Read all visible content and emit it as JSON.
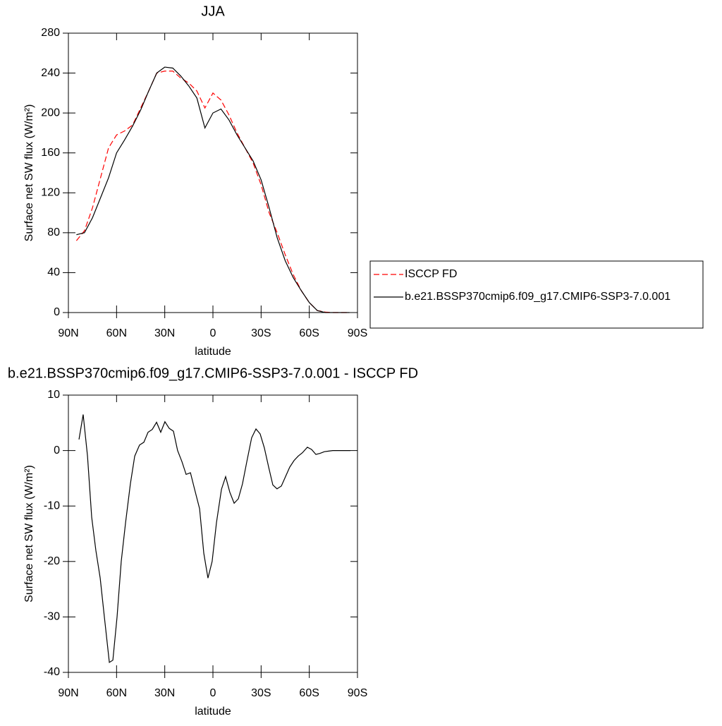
{
  "chart_data": [
    {
      "type": "line",
      "title": "JJA",
      "xlabel": "latitude",
      "ylabel": "Surface net SW flux (W/m²)",
      "x": [
        85,
        80,
        75,
        70,
        65,
        60,
        55,
        50,
        45,
        40,
        35,
        30,
        25,
        20,
        15,
        10,
        5,
        0,
        -5,
        -10,
        -15,
        -20,
        -25,
        -30,
        -35,
        -40,
        -45,
        -50,
        -55,
        -60,
        -65,
        -70,
        -75,
        -80,
        -85
      ],
      "series": [
        {
          "name": "ISCCP FD",
          "color": "#ff0000",
          "linestyle": "dashed",
          "values": [
            72,
            82,
            105,
            135,
            165,
            178,
            182,
            188,
            205,
            222,
            240,
            242,
            242,
            235,
            230,
            222,
            205,
            220,
            213,
            198,
            180,
            165,
            150,
            128,
            100,
            80,
            58,
            38,
            22,
            10,
            2,
            0.5,
            0,
            0,
            0
          ]
        },
        {
          "name": "b.e21.BSSP370cmip6.f09_g17.CMIP6-SSP3-7.0.001",
          "color": "#000000",
          "linestyle": "solid",
          "values": [
            78,
            80,
            95,
            115,
            135,
            160,
            173,
            187,
            203,
            222,
            240,
            246,
            245,
            237,
            227,
            215,
            185,
            200,
            204,
            193,
            178,
            165,
            152,
            133,
            105,
            75,
            52,
            35,
            22,
            10,
            2,
            0,
            0,
            0,
            0
          ]
        }
      ],
      "xlim": [
        90,
        -90
      ],
      "xticks": [
        {
          "value": 90,
          "label": "90N"
        },
        {
          "value": 60,
          "label": "60N"
        },
        {
          "value": 30,
          "label": "30N"
        },
        0,
        {
          "value": -30,
          "label": "30S"
        },
        {
          "value": -60,
          "label": "60S"
        },
        {
          "value": -90,
          "label": "90S"
        }
      ],
      "ylim": [
        0,
        280
      ],
      "yticks": [
        0,
        40,
        80,
        120,
        160,
        200,
        240,
        280
      ],
      "legend": "right"
    },
    {
      "type": "line",
      "title": "b.e21.BSSP370cmip6.f09_g17.CMIP6-SSP3-7.0.001 - ISCCP FD",
      "xlabel": "latitude",
      "ylabel": "Surface net SW flux (W/m²)",
      "x": [
        83.4,
        80.8,
        78.1,
        75.5,
        72.9,
        70.2,
        67.6,
        64.5,
        62.3,
        59.7,
        57.1,
        54.4,
        51.4,
        48.7,
        45.7,
        43,
        40.4,
        37.8,
        35.1,
        32.5,
        29.9,
        27.2,
        24.6,
        22,
        19.3,
        16.7,
        14,
        11.4,
        8.3,
        5.7,
        3.1,
        0.5,
        -2.2,
        -5.3,
        -7.9,
        -10.5,
        -13.2,
        -15.8,
        -18.4,
        -21.1,
        -24.1,
        -26.8,
        -29.4,
        -32,
        -34.7,
        -37.3,
        -39.9,
        -42.6,
        -45.2,
        -47.8,
        -50.5,
        -53.1,
        -55.7,
        -58.8,
        -61.4,
        -64.1,
        -66.7,
        -69.4,
        -72,
        -74.6,
        -80.3,
        -85.6
      ],
      "series": [
        {
          "name": null,
          "color": "#000000",
          "linestyle": "solid",
          "values": [
            2,
            6.5,
            -1,
            -12,
            -18,
            -23,
            -30,
            -38.2,
            -37.8,
            -30,
            -20,
            -13,
            -6,
            -1,
            1,
            1.5,
            3.3,
            3.8,
            5.1,
            3.3,
            5.2,
            4,
            3.5,
            0,
            -2,
            -4.3,
            -4,
            -7,
            -10.5,
            -18.5,
            -23,
            -20,
            -13,
            -7,
            -4.7,
            -7.5,
            -9.5,
            -8.7,
            -6,
            -2,
            2.3,
            3.9,
            3,
            0.5,
            -3,
            -6.2,
            -6.9,
            -6.4,
            -4.7,
            -3,
            -1.8,
            -1,
            -0.4,
            0.6,
            0.2,
            -0.7,
            -0.5,
            -0.2,
            -0.1,
            0,
            0,
            0
          ]
        }
      ],
      "xlim": [
        90,
        -90
      ],
      "xticks": [
        {
          "value": 90,
          "label": "90N"
        },
        {
          "value": 60,
          "label": "60N"
        },
        {
          "value": 30,
          "label": "30N"
        },
        0,
        {
          "value": -30,
          "label": "30S"
        },
        {
          "value": -60,
          "label": "60S"
        },
        {
          "value": -90,
          "label": "90S"
        }
      ],
      "ylim": [
        -40,
        10
      ],
      "yticks": [
        -40,
        -30,
        -20,
        -10,
        0,
        10
      ]
    }
  ]
}
